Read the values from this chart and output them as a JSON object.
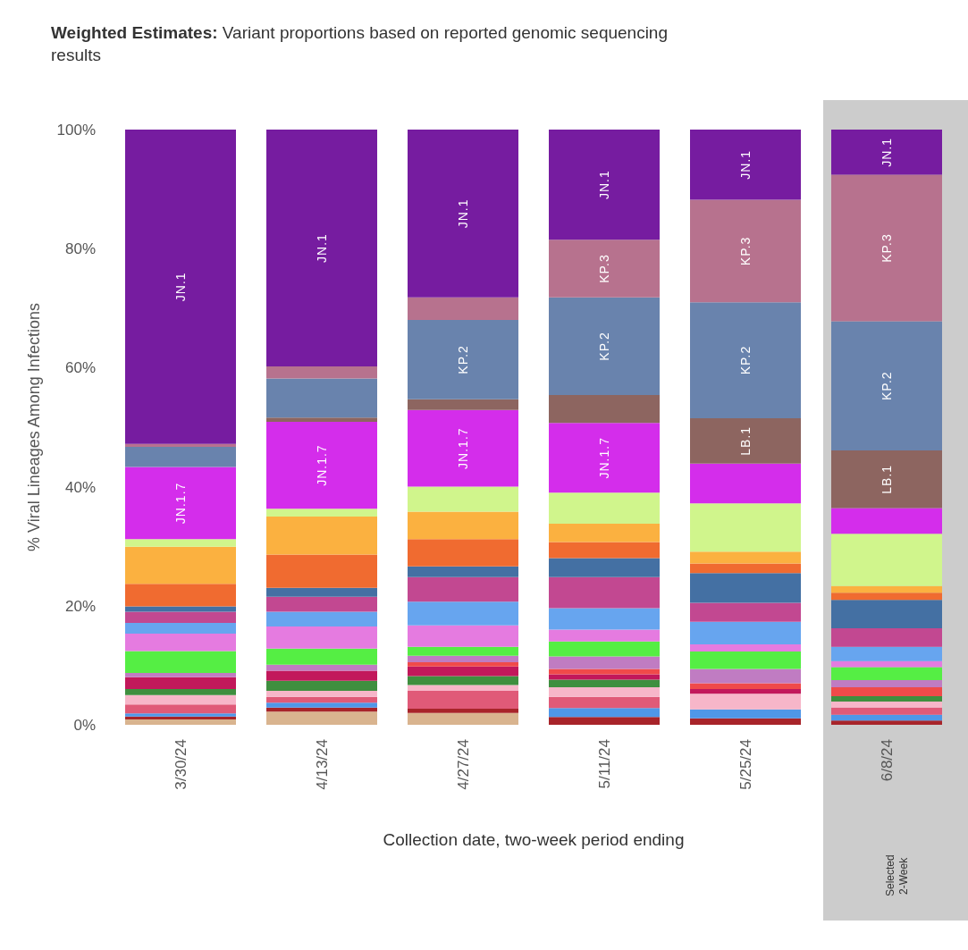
{
  "chart_data": {
    "type": "bar",
    "stacked": true,
    "title": "Weighted Estimates:",
    "subtitle": "Variant proportions based on reported genomic sequencing results",
    "ylabel": "% Viral Lineages Among Infections",
    "xlabel": "Collection date, two-week period ending",
    "categories": [
      "3/30/24",
      "4/13/24",
      "4/27/24",
      "5/11/24",
      "5/25/24",
      "6/8/24"
    ],
    "ylim": [
      0,
      100
    ],
    "yticks": [
      {
        "value": 0,
        "label": "0%"
      },
      {
        "value": 20,
        "label": "20%"
      },
      {
        "value": 40,
        "label": "40%"
      },
      {
        "value": 60,
        "label": "60%"
      },
      {
        "value": 80,
        "label": "80%"
      },
      {
        "value": 100,
        "label": "100%"
      }
    ],
    "bands": [
      {
        "axis": "x",
        "from": "6/8/24",
        "to": "6/8/24",
        "label": "Selected 2-Week",
        "color": "#cccccc"
      }
    ],
    "series": [
      {
        "color": "#d9b48f",
        "values": [
          0.9,
          2.2,
          2.0,
          null,
          null,
          null
        ]
      },
      {
        "color": "#a8242a",
        "values": [
          0.5,
          0.7,
          0.7,
          1.3,
          1.1,
          0.7
        ]
      },
      {
        "color": "#4f97e8",
        "values": [
          0.5,
          0.8,
          null,
          1.5,
          1.5,
          1.0
        ]
      },
      {
        "color": "#e05a78",
        "values": [
          1.5,
          1.0,
          3.0,
          1.9,
          null,
          1.2
        ]
      },
      {
        "color": "#f7b6c9",
        "values": [
          1.6,
          1.0,
          1.0,
          1.6,
          2.6,
          1.0
        ]
      },
      {
        "color": "#3f8f3f",
        "values": [
          1.0,
          1.7,
          1.5,
          1.3,
          null,
          0.9
        ]
      },
      {
        "color": "#c2185b",
        "values": [
          2.0,
          1.7,
          1.6,
          0.9,
          0.8,
          null
        ]
      },
      {
        "color": "#f04a4a",
        "values": [
          null,
          null,
          0.7,
          0.9,
          1.0,
          1.5
        ]
      },
      {
        "color": "#c07cc2",
        "values": [
          0.7,
          1.0,
          1.1,
          2.1,
          2.4,
          1.2
        ]
      },
      {
        "color": "#55ee44",
        "values": [
          3.7,
          2.7,
          1.5,
          2.5,
          2.9,
          2.2
        ]
      },
      {
        "color": "#e57be0",
        "values": [
          2.9,
          3.7,
          3.6,
          2.0,
          1.2,
          1.0
        ]
      },
      {
        "color": "#67a5ef",
        "values": [
          1.8,
          2.5,
          4.0,
          3.6,
          3.8,
          2.4
        ]
      },
      {
        "color": "#c24891",
        "values": [
          1.9,
          2.5,
          4.1,
          5.2,
          3.2,
          3.1
        ]
      },
      {
        "color": "#4470a3",
        "values": [
          0.9,
          1.5,
          1.8,
          3.2,
          5.0,
          4.8
        ]
      },
      {
        "color": "#f06b30",
        "values": [
          3.8,
          5.6,
          4.6,
          2.7,
          1.6,
          1.2
        ]
      },
      {
        "color": "#fbb140",
        "values": [
          6.2,
          6.4,
          4.6,
          3.1,
          2.0,
          1.1
        ]
      },
      {
        "color": "#d0f58c",
        "values": [
          1.3,
          1.3,
          4.2,
          5.2,
          8.1,
          8.8
        ]
      },
      {
        "name": "JN.1.7",
        "color": "#d42deb",
        "values": [
          12.1,
          14.6,
          12.9,
          11.7,
          6.7,
          4.3
        ]
      },
      {
        "name": "LB.1",
        "color": "#8d6560",
        "values": [
          null,
          0.7,
          1.8,
          4.7,
          7.6,
          9.7
        ]
      },
      {
        "name": "KP.2",
        "color": "#6983ad",
        "values": [
          3.4,
          6.6,
          13.3,
          16.4,
          19.5,
          21.7
        ]
      },
      {
        "name": "KP.3",
        "color": "#b7728e",
        "values": [
          0.5,
          2.0,
          3.8,
          9.7,
          17.2,
          24.6
        ]
      },
      {
        "name": "JN.1",
        "color": "#761ca0",
        "values": [
          52.8,
          39.8,
          28.2,
          18.5,
          11.8,
          7.6
        ]
      }
    ]
  }
}
